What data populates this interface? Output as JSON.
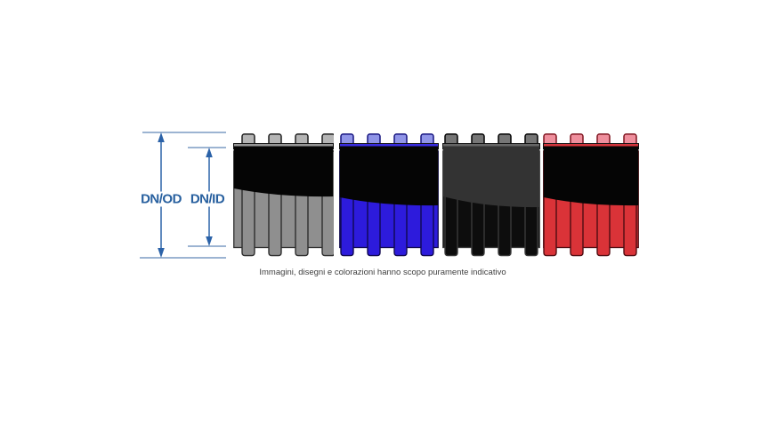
{
  "caption": "Immagini, disegni e colorazioni hanno scopo puramente indicativo",
  "dimension_labels": {
    "outer": "DN/OD",
    "inner": "DN/ID"
  },
  "colors": {
    "accent": "#2b62a8",
    "extension-line": "#6288b8",
    "label-text": "#28609f",
    "caption-text": "#3f3f3f"
  },
  "tubes": [
    {
      "name": "gray",
      "bump": "#b5b5b5",
      "bump_stroke": "#1f1f1f",
      "band": "#969696",
      "inner": "#050505",
      "ridge": "#8f8f8f",
      "ridge_stroke": "#2e2e2e"
    },
    {
      "name": "blue",
      "bump": "#9095e8",
      "bump_stroke": "#15137f",
      "band": "#3a2de0",
      "inner": "#050505",
      "ridge": "#2d1bdc",
      "ridge_stroke": "#10094f"
    },
    {
      "name": "black",
      "bump": "#767676",
      "bump_stroke": "#000000",
      "band": "#666666",
      "inner": "#333333",
      "ridge": "#0d0d0d",
      "ridge_stroke": "#3a3a3a"
    },
    {
      "name": "red",
      "bump": "#ef8f9d",
      "bump_stroke": "#7f141f",
      "band": "#d4353c",
      "inner": "#050505",
      "ridge": "#da3338",
      "ridge_stroke": "#4f0d12"
    }
  ]
}
